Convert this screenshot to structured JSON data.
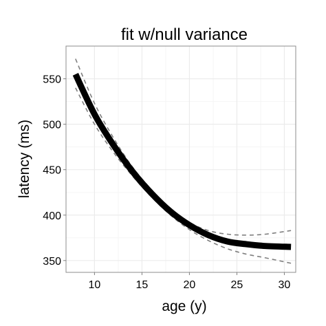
{
  "chart_data": {
    "type": "line",
    "title": "fit w/null variance",
    "xlabel": "age (y)",
    "ylabel": "latency (ms)",
    "xlim": [
      7.0,
      31.2
    ],
    "ylim": [
      337,
      586
    ],
    "xticks": [
      10,
      15,
      20,
      25,
      30
    ],
    "yticks": [
      350,
      400,
      450,
      500,
      550
    ],
    "grid": true,
    "colors": {
      "fit": "#000000",
      "bands": "#7f7f7f",
      "panel_border": "#8c8c8c",
      "grid_major": "#ebebeb",
      "grid_minor": "#f5f5f5"
    },
    "series": [
      {
        "style": "solid-thick",
        "x": [
          8,
          10,
          12,
          14,
          16,
          18,
          20,
          22,
          24,
          26,
          28,
          30.7
        ],
        "y": [
          555,
          511,
          477,
          448,
          424,
          404,
          389,
          378,
          371,
          368,
          366,
          365
        ]
      },
      {
        "style": "dashed-upper",
        "x": [
          8,
          10,
          12,
          14,
          16,
          18,
          20,
          22,
          24,
          26,
          28,
          30.7
        ],
        "y": [
          572,
          523,
          485,
          453,
          428,
          407,
          392,
          383,
          379,
          378,
          379,
          383
        ]
      },
      {
        "style": "dashed-lower",
        "x": [
          8,
          10,
          12,
          14,
          16,
          18,
          20,
          22,
          24,
          26,
          28,
          30.7
        ],
        "y": [
          540,
          500,
          469,
          443,
          420,
          400,
          384,
          372,
          363,
          357,
          353,
          347
        ]
      }
    ]
  }
}
